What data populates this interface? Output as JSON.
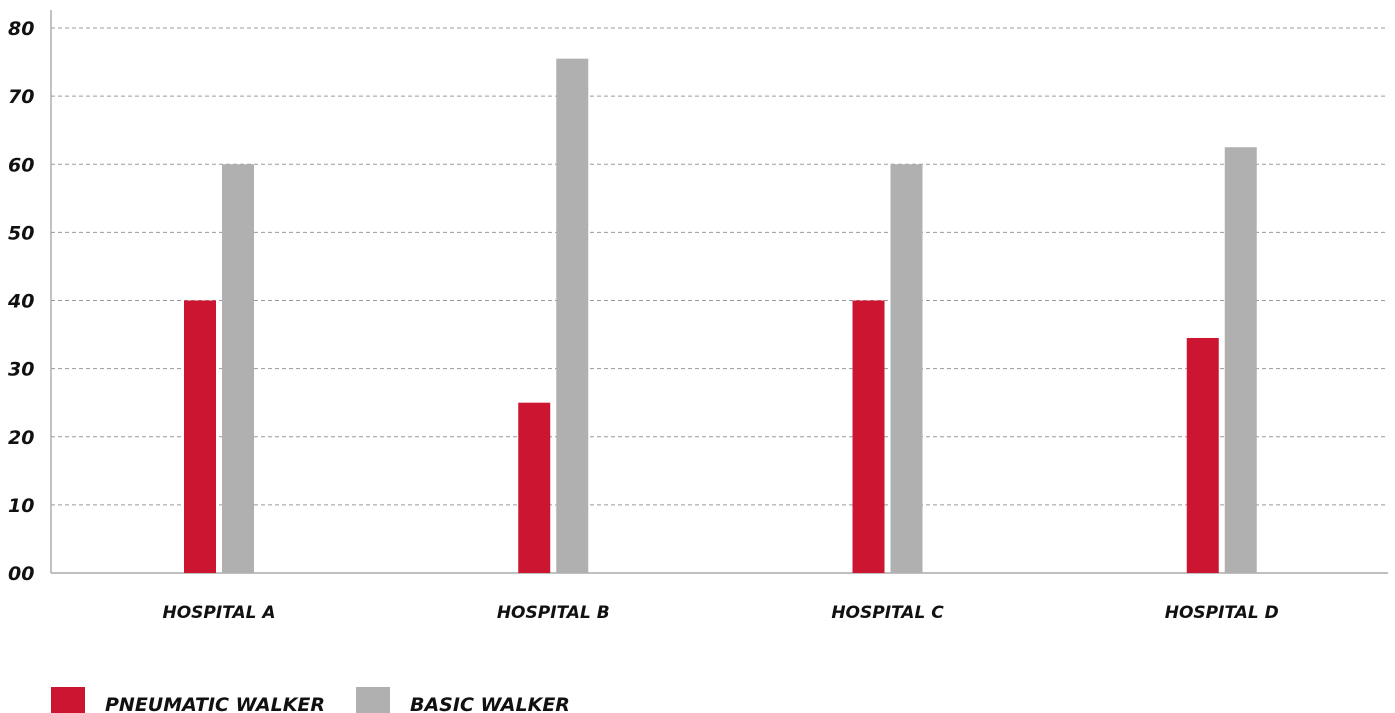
{
  "chart_data": {
    "type": "bar",
    "title": "",
    "xlabel": "",
    "ylabel": "",
    "categories": [
      "HOSPITAL A",
      "HOSPITAL B",
      "HOSPITAL C",
      "HOSPITAL D"
    ],
    "series": [
      {
        "name": "PNEUMATIC WALKER",
        "color": "#cc1530",
        "values": [
          40,
          25,
          40,
          34.5
        ]
      },
      {
        "name": "BASIC WALKER",
        "color": "#b0b0b0",
        "values": [
          60,
          75.5,
          60,
          62.5
        ]
      }
    ],
    "ylim": [
      0,
      80
    ],
    "yticks": [
      "00",
      "10",
      "20",
      "30",
      "40",
      "50",
      "60",
      "70",
      "80"
    ],
    "grid": true,
    "legend_position": "bottom-left"
  }
}
